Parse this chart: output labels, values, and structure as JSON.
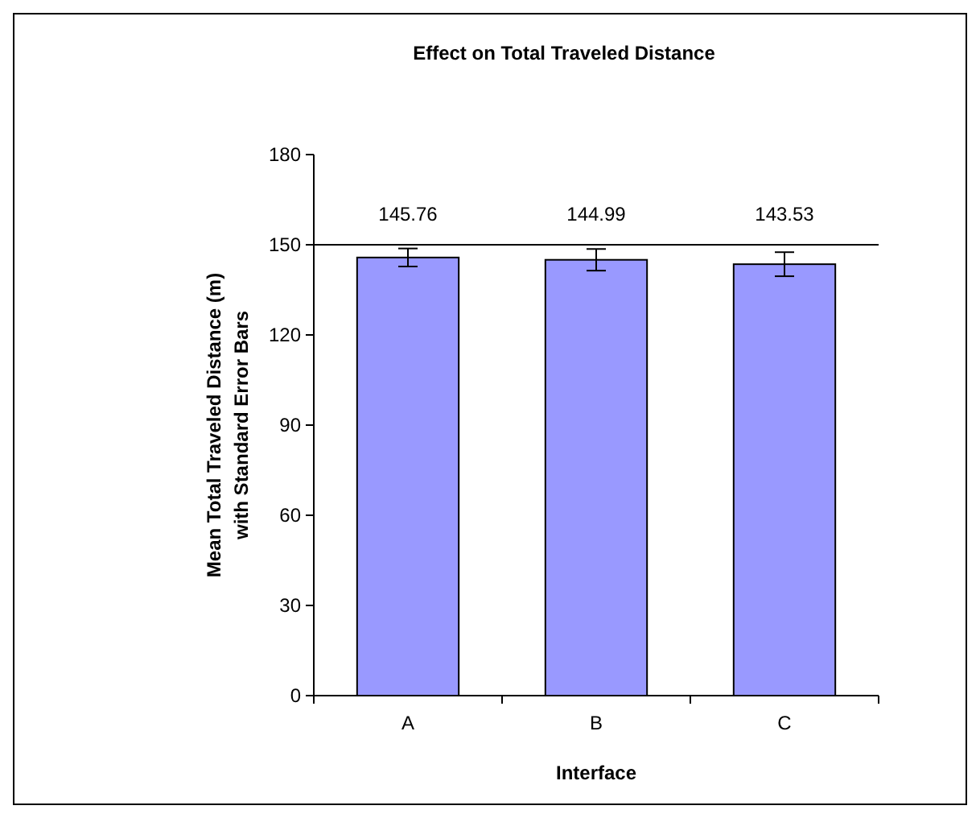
{
  "chart_data": {
    "type": "bar",
    "title": "Effect on Total Traveled Distance",
    "xlabel": "Interface",
    "ylabel": "Mean Total Traveled Distance (m) with Standard Error Bars",
    "categories": [
      "A",
      "B",
      "C"
    ],
    "values": [
      145.76,
      144.99,
      143.53
    ],
    "color": "#9999ff",
    "errors": [
      3,
      3.6,
      4
    ],
    "data_labels": true,
    "ylim": [
      0,
      180
    ],
    "yticks": [
      0,
      30,
      60,
      90,
      120,
      150,
      180
    ],
    "ref_lines": [
      {
        "axis": "y",
        "value": 150,
        "color": "#000000"
      }
    ],
    "grid": false
  }
}
